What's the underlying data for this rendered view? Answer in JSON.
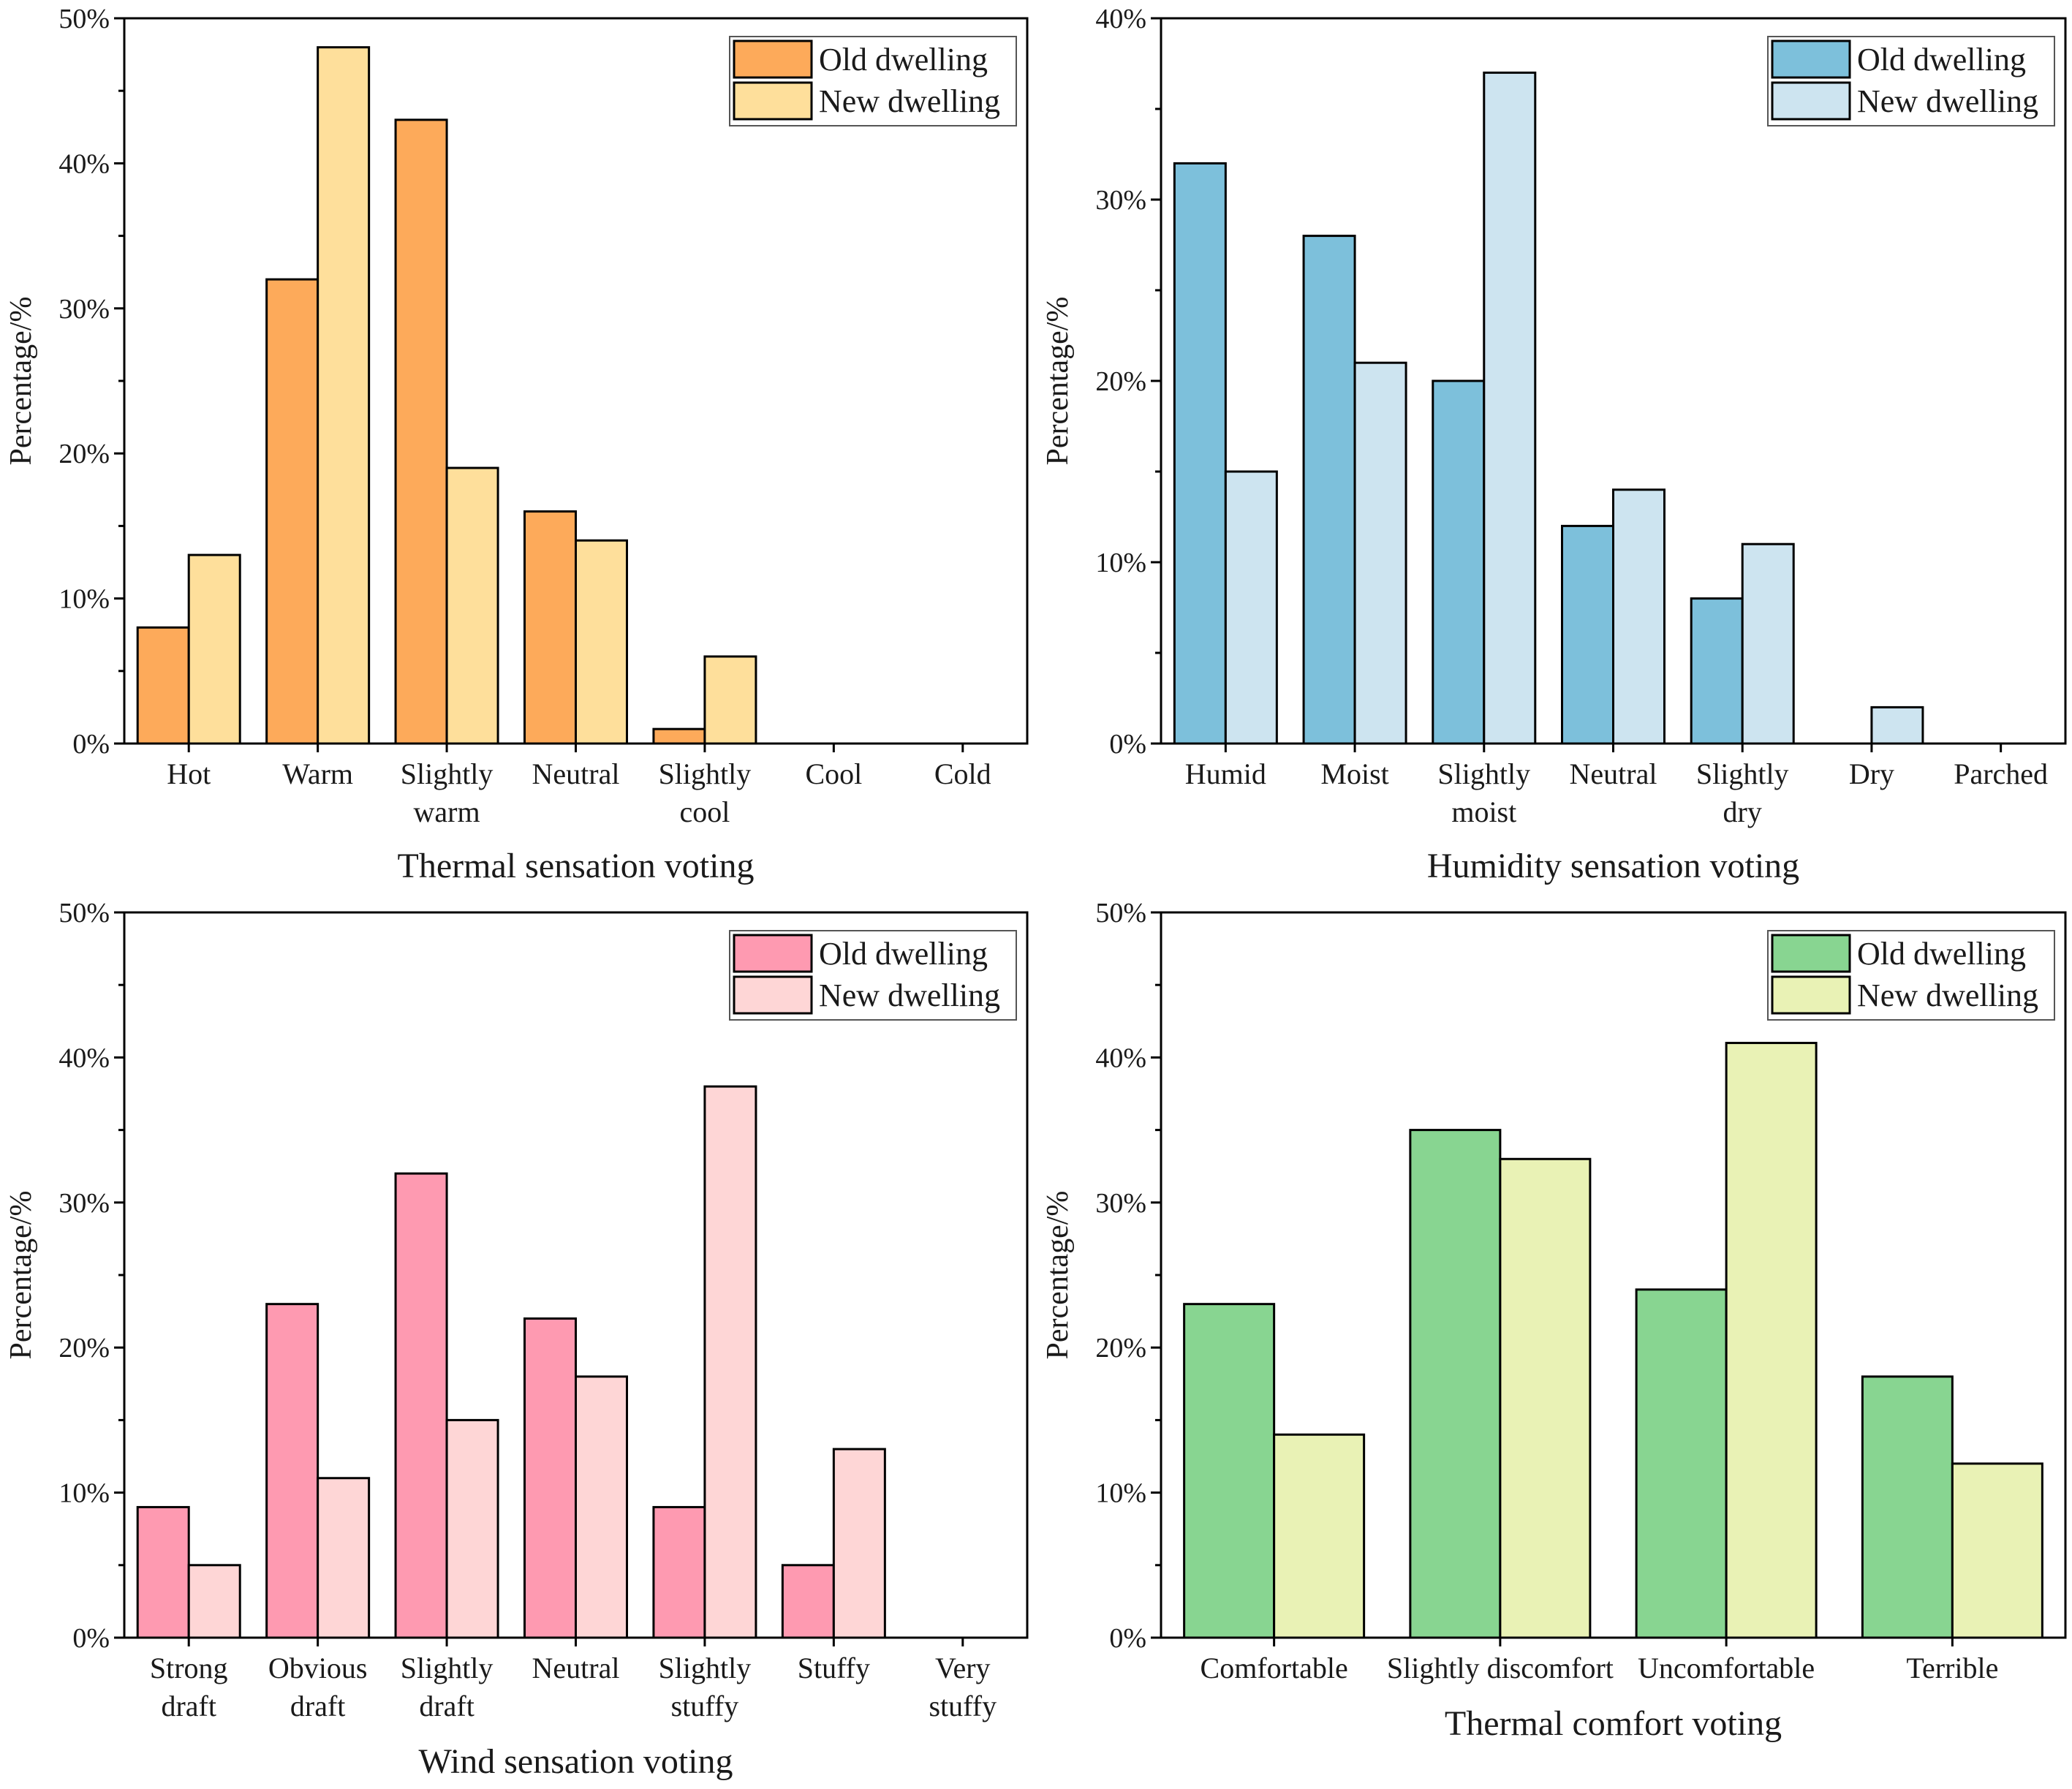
{
  "figure": {
    "panel_count": 4
  },
  "chart_data": [
    {
      "type": "bar",
      "xlabel": "Thermal sensation voting",
      "ylabel": "Percentage/%",
      "ylim": [
        0,
        50
      ],
      "yticks": [
        "0%",
        "10%",
        "20%",
        "30%",
        "40%",
        "50%"
      ],
      "categories": [
        [
          "Hot"
        ],
        [
          "Warm"
        ],
        [
          "Slightly",
          "warm"
        ],
        [
          "Neutral"
        ],
        [
          "Slightly",
          "cool"
        ],
        [
          "Cool"
        ],
        [
          "Cold"
        ]
      ],
      "series": [
        {
          "name": "Old dwelling",
          "color": "#FDAA5A",
          "values": [
            8,
            32,
            43,
            16,
            1,
            0,
            0
          ]
        },
        {
          "name": "New dwelling",
          "color": "#FEDF9B",
          "values": [
            13,
            48,
            19,
            14,
            6,
            0,
            0
          ]
        }
      ],
      "legend": "top-right",
      "grid": false
    },
    {
      "type": "bar",
      "xlabel": "Humidity sensation voting",
      "ylabel": "Percentage/%",
      "ylim": [
        0,
        40
      ],
      "yticks": [
        "0%",
        "10%",
        "20%",
        "30%",
        "40%"
      ],
      "categories": [
        [
          "Humid"
        ],
        [
          "Moist"
        ],
        [
          "Slightly",
          "moist"
        ],
        [
          "Neutral"
        ],
        [
          "Slightly",
          "dry"
        ],
        [
          "Dry"
        ],
        [
          "Parched"
        ]
      ],
      "series": [
        {
          "name": "Old dwelling",
          "color": "#7DC0DB",
          "values": [
            32,
            28,
            20,
            12,
            8,
            0,
            0
          ]
        },
        {
          "name": "New dwelling",
          "color": "#CDE4F0",
          "values": [
            15,
            21,
            37,
            14,
            11,
            2,
            0
          ]
        }
      ],
      "legend": "top-right",
      "grid": false
    },
    {
      "type": "bar",
      "xlabel": "Wind sensation voting",
      "ylabel": "Percentage/%",
      "ylim": [
        0,
        50
      ],
      "yticks": [
        "0%",
        "10%",
        "20%",
        "30%",
        "40%",
        "50%"
      ],
      "categories": [
        [
          "Strong",
          "draft"
        ],
        [
          "Obvious",
          "draft"
        ],
        [
          "Slightly",
          "draft"
        ],
        [
          "Neutral"
        ],
        [
          "Slightly",
          "stuffy"
        ],
        [
          "Stuffy"
        ],
        [
          "Very",
          "stuffy"
        ]
      ],
      "series": [
        {
          "name": "Old dwelling",
          "color": "#FE9AB1",
          "values": [
            9,
            23,
            32,
            22,
            9,
            5,
            0
          ]
        },
        {
          "name": "New dwelling",
          "color": "#FED6D6",
          "values": [
            5,
            11,
            15,
            18,
            38,
            13,
            0
          ]
        }
      ],
      "legend": "top-right",
      "grid": false
    },
    {
      "type": "bar",
      "xlabel": "Thermal comfort voting",
      "ylabel": "Percentage/%",
      "ylim": [
        0,
        50
      ],
      "yticks": [
        "0%",
        "10%",
        "20%",
        "30%",
        "40%",
        "50%"
      ],
      "categories": [
        [
          "Comfortable"
        ],
        [
          "Slightly discomfort"
        ],
        [
          "Uncomfortable"
        ],
        [
          "Terrible"
        ]
      ],
      "series": [
        {
          "name": "Old dwelling",
          "color": "#88D591",
          "values": [
            23,
            35,
            24,
            18
          ]
        },
        {
          "name": "New dwelling",
          "color": "#E9F2B5",
          "values": [
            14,
            33,
            41,
            12
          ]
        }
      ],
      "legend": "top-right",
      "grid": false
    }
  ]
}
